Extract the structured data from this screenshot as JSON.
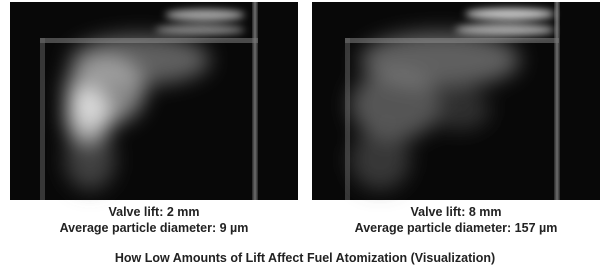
{
  "figures": [
    {
      "caption": {
        "line1": "Valve lift: 2 mm",
        "line2": "Average particle diameter: 9 µm"
      }
    },
    {
      "caption": {
        "line1": "Valve lift: 8 mm",
        "line2": "Average particle diameter: 157 µm"
      }
    }
  ],
  "title": "How Low Amounts of Lift Affect Fuel Atomization (Visualization)"
}
